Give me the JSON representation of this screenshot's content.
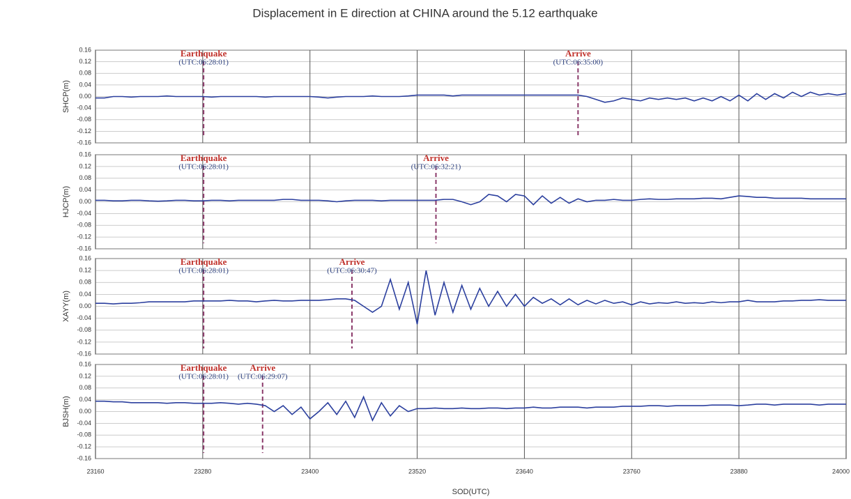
{
  "chart_data": [
    {
      "type": "line",
      "title": "Displacement in E direction at CHINA around the 5.12 earthquake",
      "ylabel": "SHCP(m)",
      "xlim": [
        23160,
        24000
      ],
      "ylim": [
        -0.16,
        0.16
      ],
      "yticks": [
        {
          "value": 0.16,
          "label": "0.16"
        },
        {
          "value": 0.12,
          "label": "0.12"
        },
        {
          "value": 0.08,
          "label": "0.08"
        },
        {
          "value": 0.04,
          "label": "0.04"
        },
        {
          "value": 0,
          "label": "0.00"
        },
        {
          "value": -0.04,
          "label": "-0.04"
        },
        {
          "value": -0.08,
          "label": "-0.08"
        },
        {
          "value": -0.12,
          "label": "-0.12"
        },
        {
          "value": -0.16,
          "label": "-0.16"
        }
      ],
      "events": [
        {
          "label": "Earthquake",
          "time": "(UTC:06:28:01)",
          "x": 23281
        },
        {
          "label": "Arrive",
          "time": "(UTC:06:35:00)",
          "x": 23700
        }
      ],
      "x": [
        23160,
        23170,
        23180,
        23190,
        23200,
        23210,
        23220,
        23230,
        23240,
        23250,
        23260,
        23270,
        23280,
        23290,
        23300,
        23310,
        23320,
        23330,
        23340,
        23350,
        23360,
        23370,
        23380,
        23390,
        23400,
        23410,
        23420,
        23430,
        23440,
        23450,
        23460,
        23470,
        23480,
        23490,
        23500,
        23510,
        23520,
        23530,
        23540,
        23550,
        23560,
        23570,
        23580,
        23590,
        23600,
        23610,
        23620,
        23630,
        23640,
        23650,
        23660,
        23670,
        23680,
        23690,
        23700,
        23710,
        23720,
        23730,
        23740,
        23750,
        23760,
        23770,
        23780,
        23790,
        23800,
        23810,
        23820,
        23830,
        23840,
        23850,
        23860,
        23870,
        23880,
        23890,
        23900,
        23910,
        23920,
        23930,
        23940,
        23950,
        23960,
        23970,
        23980,
        23990,
        24000
      ],
      "series": [
        {
          "color": "#2b3f9e",
          "values": [
            -0.005,
            -0.005,
            0,
            0,
            -0.002,
            0,
            0,
            0,
            0.002,
            0,
            0,
            0,
            0,
            -0.002,
            0,
            0,
            0,
            0,
            0,
            -0.002,
            0,
            0,
            0,
            0,
            0,
            -0.002,
            -0.005,
            -0.002,
            0,
            0,
            0,
            0.002,
            0,
            0,
            0,
            0.002,
            0.005,
            0.005,
            0.005,
            0.005,
            0.002,
            0.005,
            0.005,
            0.005,
            0.005,
            0.005,
            0.005,
            0.005,
            0.005,
            0.005,
            0.005,
            0.005,
            0.005,
            0.005,
            0.005,
            0,
            -0.01,
            -0.02,
            -0.015,
            -0.005,
            -0.01,
            -0.015,
            -0.005,
            -0.01,
            -0.005,
            -0.01,
            -0.005,
            -0.015,
            -0.005,
            -0.015,
            0,
            -0.015,
            0.005,
            -0.015,
            0.01,
            -0.01,
            0.01,
            -0.005,
            0.015,
            0,
            0.015,
            0.005,
            0.01,
            0.005,
            0.01
          ]
        }
      ]
    },
    {
      "type": "line",
      "ylabel": "HJCP(m)",
      "xlim": [
        23160,
        24000
      ],
      "ylim": [
        -0.16,
        0.16
      ],
      "yticks": [
        {
          "value": 0.16,
          "label": "0.16"
        },
        {
          "value": 0.12,
          "label": "0.12"
        },
        {
          "value": 0.08,
          "label": "0.08"
        },
        {
          "value": 0.04,
          "label": "0.04"
        },
        {
          "value": 0,
          "label": "0.00"
        },
        {
          "value": -0.04,
          "label": "-0.04"
        },
        {
          "value": -0.08,
          "label": "-0.08"
        },
        {
          "value": -0.12,
          "label": "-0.12"
        },
        {
          "value": -0.16,
          "label": "-0.16"
        }
      ],
      "events": [
        {
          "label": "Earthquake",
          "time": "(UTC:06:28:01)",
          "x": 23281
        },
        {
          "label": "Arrive",
          "time": "(UTC:06:32:21)",
          "x": 23541
        }
      ],
      "x": [
        23160,
        23170,
        23180,
        23190,
        23200,
        23210,
        23220,
        23230,
        23240,
        23250,
        23260,
        23270,
        23280,
        23290,
        23300,
        23310,
        23320,
        23330,
        23340,
        23350,
        23360,
        23370,
        23380,
        23390,
        23400,
        23410,
        23420,
        23430,
        23440,
        23450,
        23460,
        23470,
        23480,
        23490,
        23500,
        23510,
        23520,
        23530,
        23540,
        23550,
        23560,
        23570,
        23580,
        23590,
        23600,
        23610,
        23620,
        23630,
        23640,
        23650,
        23660,
        23670,
        23680,
        23690,
        23700,
        23710,
        23720,
        23730,
        23740,
        23750,
        23760,
        23770,
        23780,
        23790,
        23800,
        23810,
        23820,
        23830,
        23840,
        23850,
        23860,
        23870,
        23880,
        23890,
        23900,
        23910,
        23920,
        23930,
        23940,
        23950,
        23960,
        23970,
        23980,
        23990,
        24000
      ],
      "series": [
        {
          "color": "#2b3f9e",
          "values": [
            0.005,
            0.005,
            0.003,
            0.003,
            0.005,
            0.005,
            0.003,
            0.002,
            0.003,
            0.005,
            0.005,
            0.003,
            0.003,
            0.005,
            0.005,
            0.003,
            0.005,
            0.005,
            0.005,
            0.005,
            0.005,
            0.008,
            0.008,
            0.005,
            0.005,
            0.005,
            0.003,
            0,
            0.003,
            0.005,
            0.005,
            0.005,
            0.003,
            0.005,
            0.005,
            0.005,
            0.005,
            0.005,
            0.005,
            0.008,
            0.008,
            0,
            -0.01,
            0,
            0.025,
            0.02,
            0,
            0.025,
            0.02,
            -0.01,
            0.02,
            -0.005,
            0.015,
            -0.005,
            0.01,
            0,
            0.005,
            0.005,
            0.008,
            0.005,
            0.005,
            0.008,
            0.01,
            0.008,
            0.008,
            0.01,
            0.01,
            0.01,
            0.012,
            0.012,
            0.01,
            0.015,
            0.02,
            0.018,
            0.015,
            0.015,
            0.012,
            0.012,
            0.012,
            0.012,
            0.01,
            0.01,
            0.01,
            0.01,
            0.01
          ]
        }
      ]
    },
    {
      "type": "line",
      "ylabel": "XAYY(m)",
      "xlim": [
        23160,
        24000
      ],
      "ylim": [
        -0.16,
        0.16
      ],
      "yticks": [
        {
          "value": 0.16,
          "label": "0.16"
        },
        {
          "value": 0.12,
          "label": "0.12"
        },
        {
          "value": 0.08,
          "label": "0.08"
        },
        {
          "value": 0.04,
          "label": "0.04"
        },
        {
          "value": 0,
          "label": "0.00"
        },
        {
          "value": -0.04,
          "label": "-0.04"
        },
        {
          "value": -0.08,
          "label": "-0.08"
        },
        {
          "value": -0.12,
          "label": "-0.12"
        },
        {
          "value": -0.16,
          "label": "-0.16"
        }
      ],
      "events": [
        {
          "label": "Earthquake",
          "time": "(UTC:06:28:01)",
          "x": 23281
        },
        {
          "label": "Arrive",
          "time": "(UTC:06:30:47)",
          "x": 23447
        }
      ],
      "x": [
        23160,
        23170,
        23180,
        23190,
        23200,
        23210,
        23220,
        23230,
        23240,
        23250,
        23260,
        23270,
        23280,
        23290,
        23300,
        23310,
        23320,
        23330,
        23340,
        23350,
        23360,
        23370,
        23380,
        23390,
        23400,
        23410,
        23420,
        23430,
        23440,
        23450,
        23460,
        23470,
        23480,
        23490,
        23500,
        23510,
        23520,
        23530,
        23540,
        23550,
        23560,
        23570,
        23580,
        23590,
        23600,
        23610,
        23620,
        23630,
        23640,
        23650,
        23660,
        23670,
        23680,
        23690,
        23700,
        23710,
        23720,
        23730,
        23740,
        23750,
        23760,
        23770,
        23780,
        23790,
        23800,
        23810,
        23820,
        23830,
        23840,
        23850,
        23860,
        23870,
        23880,
        23890,
        23900,
        23910,
        23920,
        23930,
        23940,
        23950,
        23960,
        23970,
        23980,
        23990,
        24000
      ],
      "series": [
        {
          "color": "#2b3f9e",
          "values": [
            0.01,
            0.01,
            0.008,
            0.01,
            0.01,
            0.012,
            0.015,
            0.015,
            0.015,
            0.015,
            0.015,
            0.018,
            0.018,
            0.018,
            0.018,
            0.02,
            0.018,
            0.018,
            0.015,
            0.018,
            0.02,
            0.018,
            0.018,
            0.02,
            0.02,
            0.02,
            0.022,
            0.025,
            0.025,
            0.02,
            0,
            -0.02,
            0,
            0.09,
            -0.01,
            0.08,
            -0.06,
            0.12,
            -0.03,
            0.08,
            -0.02,
            0.07,
            -0.01,
            0.06,
            0,
            0.05,
            0,
            0.04,
            0,
            0.03,
            0.01,
            0.025,
            0.005,
            0.025,
            0.005,
            0.02,
            0.008,
            0.02,
            0.01,
            0.015,
            0.005,
            0.015,
            0.008,
            0.012,
            0.01,
            0.015,
            0.01,
            0.012,
            0.01,
            0.015,
            0.012,
            0.015,
            0.015,
            0.02,
            0.015,
            0.015,
            0.015,
            0.018,
            0.018,
            0.02,
            0.02,
            0.022,
            0.02,
            0.02,
            0.02
          ]
        }
      ]
    },
    {
      "type": "line",
      "ylabel": "BJSH(m)",
      "xlabel": "SOD(UTC)",
      "xlim": [
        23160,
        24000
      ],
      "ylim": [
        -0.16,
        0.16
      ],
      "xticks": [
        23160,
        23280,
        23400,
        23520,
        23640,
        23760,
        23880,
        24000
      ],
      "yticks": [
        {
          "value": 0.16,
          "label": "0.16"
        },
        {
          "value": 0.12,
          "label": "0.12"
        },
        {
          "value": 0.08,
          "label": "0.08"
        },
        {
          "value": 0.04,
          "label": "0.04"
        },
        {
          "value": 0,
          "label": "0.00"
        },
        {
          "value": -0.04,
          "label": "-0.04"
        },
        {
          "value": -0.08,
          "label": "-0.08"
        },
        {
          "value": -0.12,
          "label": "-0.12"
        },
        {
          "value": -0.16,
          "label": "-0.16"
        }
      ],
      "events": [
        {
          "label": "Earthquake",
          "time": "(UTC:06:28:01)",
          "x": 23281
        },
        {
          "label": "Arrive",
          "time": "(UTC:06:29:07)",
          "x": 23347
        }
      ],
      "x": [
        23160,
        23170,
        23180,
        23190,
        23200,
        23210,
        23220,
        23230,
        23240,
        23250,
        23260,
        23270,
        23280,
        23290,
        23300,
        23310,
        23320,
        23330,
        23340,
        23350,
        23360,
        23370,
        23380,
        23390,
        23400,
        23410,
        23420,
        23430,
        23440,
        23450,
        23460,
        23470,
        23480,
        23490,
        23500,
        23510,
        23520,
        23530,
        23540,
        23550,
        23560,
        23570,
        23580,
        23590,
        23600,
        23610,
        23620,
        23630,
        23640,
        23650,
        23660,
        23670,
        23680,
        23690,
        23700,
        23710,
        23720,
        23730,
        23740,
        23750,
        23760,
        23770,
        23780,
        23790,
        23800,
        23810,
        23820,
        23830,
        23840,
        23850,
        23860,
        23870,
        23880,
        23890,
        23900,
        23910,
        23920,
        23930,
        23940,
        23950,
        23960,
        23970,
        23980,
        23990,
        24000
      ],
      "series": [
        {
          "color": "#2b3f9e",
          "values": [
            0.035,
            0.035,
            0.033,
            0.033,
            0.03,
            0.03,
            0.03,
            0.03,
            0.028,
            0.03,
            0.03,
            0.028,
            0.028,
            0.028,
            0.03,
            0.028,
            0.025,
            0.028,
            0.025,
            0.02,
            0,
            0.02,
            -0.01,
            0.015,
            -0.025,
            0,
            0.03,
            -0.01,
            0.035,
            -0.02,
            0.05,
            -0.03,
            0.03,
            -0.015,
            0.02,
            0,
            0.01,
            0.01,
            0.012,
            0.01,
            0.01,
            0.012,
            0.01,
            0.01,
            0.012,
            0.012,
            0.01,
            0.012,
            0.012,
            0.015,
            0.012,
            0.012,
            0.015,
            0.015,
            0.015,
            0.012,
            0.015,
            0.015,
            0.015,
            0.018,
            0.018,
            0.018,
            0.02,
            0.02,
            0.018,
            0.02,
            0.02,
            0.02,
            0.02,
            0.022,
            0.022,
            0.022,
            0.02,
            0.022,
            0.025,
            0.025,
            0.022,
            0.025,
            0.025,
            0.025,
            0.025,
            0.022,
            0.025,
            0.025,
            0.025
          ]
        }
      ]
    }
  ]
}
